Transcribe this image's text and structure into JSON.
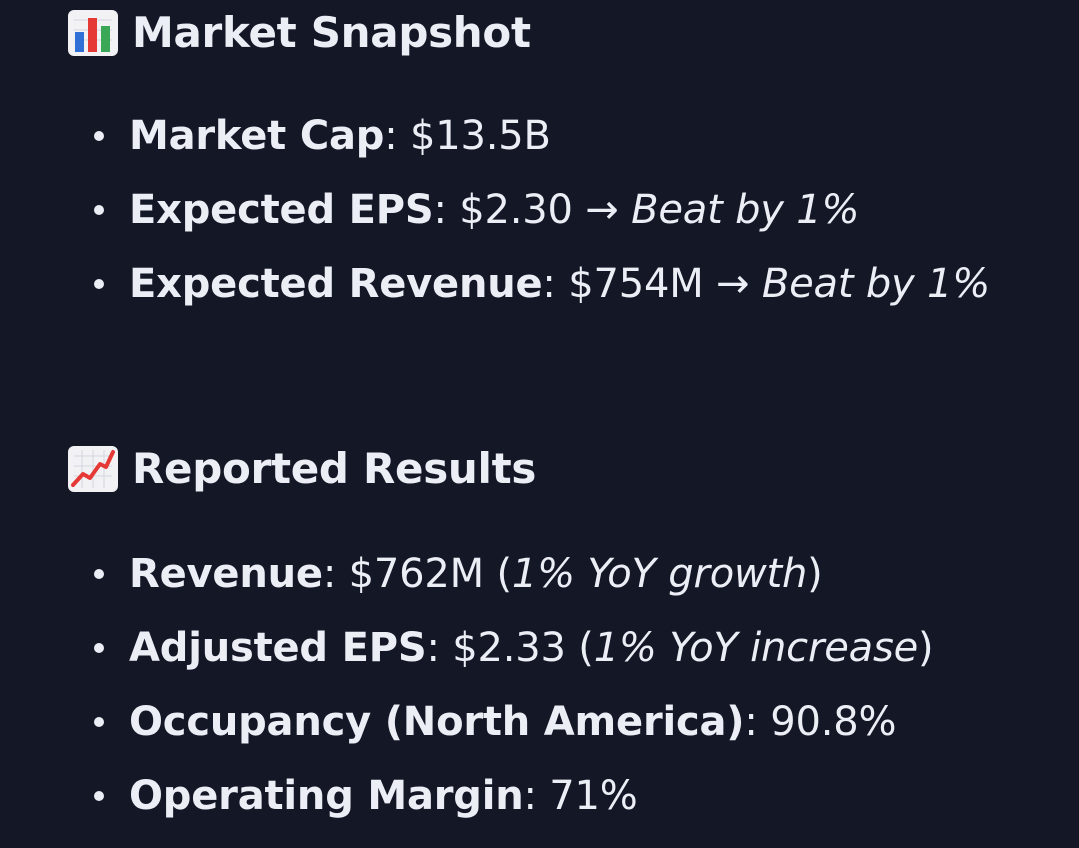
{
  "sections": [
    {
      "icon": "bar-chart-icon",
      "title": "Market Snapshot",
      "items": [
        {
          "label": "Market Cap",
          "sep": ": ",
          "value": "$13.5B",
          "arrow": "",
          "note": ""
        },
        {
          "label": "Expected EPS",
          "sep": ": ",
          "value": "$2.30",
          "arrow": " → ",
          "note": "Beat by 1%"
        },
        {
          "label": "Expected Revenue",
          "sep": ": ",
          "value": "$754M",
          "arrow": " → ",
          "note": "Beat by 1%"
        }
      ]
    },
    {
      "icon": "chart-increasing-icon",
      "title": "Reported Results",
      "items": [
        {
          "label": "Revenue",
          "sep": ": ",
          "value": "$762M (",
          "note": "1% YoY growth",
          "close": ")"
        },
        {
          "label": "Adjusted EPS",
          "sep": ": ",
          "value": "$2.33 (",
          "note": "1% YoY increase",
          "close": ")"
        },
        {
          "label": "Occupancy (North America)",
          "sep": ": ",
          "value": "90.8%"
        },
        {
          "label": "Operating Margin",
          "sep": ": ",
          "value": "71%"
        }
      ]
    }
  ],
  "colors": {
    "background": "#141726",
    "text": "#eceef6"
  }
}
